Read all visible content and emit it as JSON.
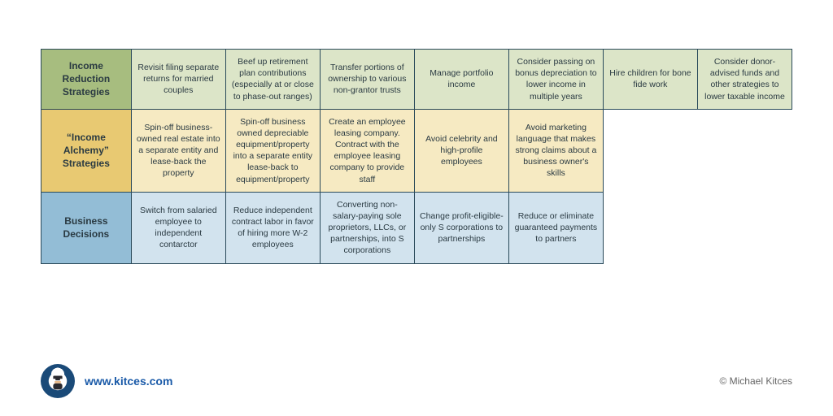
{
  "table": {
    "border_color": "#2a4a5a",
    "row_header_colors": [
      "#a7bd7f",
      "#e8c972",
      "#93bdd6"
    ],
    "row_cell_colors": [
      "#dce5c8",
      "#f6eac2",
      "#d2e3ee"
    ],
    "text_color": "#2a3a42",
    "header_fontsize": 12,
    "cell_fontsize": 10.5,
    "columns": 8,
    "rows": [
      {
        "header": "Income Reduction Strategies",
        "cells": [
          "Revisit filing separate returns for married couples",
          "Beef up retirement plan contributions (especially at or close to phase-out ranges)",
          "Transfer portions of ownership to various non-grantor trusts",
          "Manage portfolio income",
          "Consider passing on bonus depreciation to lower income in multiple years",
          "Hire children for bone fide work",
          "Consider donor-advised funds and other strategies to lower taxable income"
        ]
      },
      {
        "header": "“Income Alchemy” Strategies",
        "cells": [
          "Spin-off business-owned real estate into a separate entity and lease-back the property",
          "Spin-off business owned depreciable equipment/property into a separate entity lease-back to equipment/property",
          "Create an employee leasing company. Contract with the employee leasing company to provide staff",
          "Avoid celebrity and high-profile employees",
          "Avoid marketing language that makes strong claims about a business owner's skills",
          "",
          ""
        ]
      },
      {
        "header": "Business Decisions",
        "cells": [
          "Switch from salaried employee to independent contarctor",
          "Reduce independent contract labor in favor of hiring more W-2 employees",
          "Converting non-salary-paying sole proprietors, LLCs, or partnerships, into S corporations",
          "Change profit-eligible-only S corporations to partnerships",
          "Reduce or eliminate guaranteed payments to partners",
          "",
          ""
        ]
      }
    ]
  },
  "footer": {
    "url": "www.kitces.com",
    "url_color": "#1a5aa8",
    "copyright": "© Michael Kitces",
    "avatar_bg": "#1a4a78"
  }
}
